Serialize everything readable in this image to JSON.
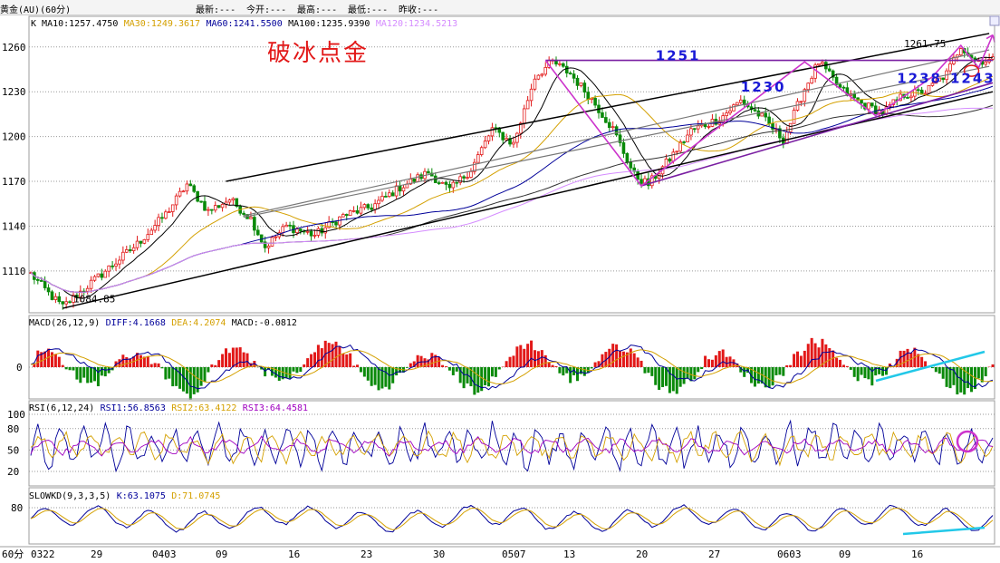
{
  "header": {
    "symbol": "黄金(AU)(60分)",
    "stats": [
      {
        "label": "最新:",
        "value": "---"
      },
      {
        "label": "今开:",
        "value": "---"
      },
      {
        "label": "最高:",
        "value": "---"
      },
      {
        "label": "最低:",
        "value": "---"
      },
      {
        "label": "昨收:",
        "value": "---"
      }
    ]
  },
  "period_label": "60分",
  "chart_data": [
    {
      "type": "line",
      "panel": "price",
      "title": "破冰点金",
      "legend": [
        {
          "text": "K",
          "color": "#000000"
        },
        {
          "text": "MA10:1257.4750",
          "color": "#000000"
        },
        {
          "text": "MA30:1249.3617",
          "color": "#d4a000"
        },
        {
          "text": "MA60:1241.5500",
          "color": "#000099"
        },
        {
          "text": "MA100:1235.9390",
          "color": "#000000"
        },
        {
          "text": "MA120:1234.5213",
          "color": "#d58cff"
        }
      ],
      "ylim": [
        1082,
        1272
      ],
      "yticks": [
        "1260",
        "1230",
        "1200",
        "1170",
        "1140",
        "1110"
      ],
      "ytick_values": [
        1260,
        1230,
        1200,
        1170,
        1140,
        1110
      ],
      "anchors": [
        {
          "t": 0,
          "v": 1108
        },
        {
          "t": 5,
          "v": 1095
        },
        {
          "t": 9,
          "v": 1086
        },
        {
          "t": 14,
          "v": 1096
        },
        {
          "t": 22,
          "v": 1112
        },
        {
          "t": 30,
          "v": 1128
        },
        {
          "t": 38,
          "v": 1148
        },
        {
          "t": 44,
          "v": 1168
        },
        {
          "t": 50,
          "v": 1150
        },
        {
          "t": 56,
          "v": 1158
        },
        {
          "t": 62,
          "v": 1145
        },
        {
          "t": 66,
          "v": 1126
        },
        {
          "t": 72,
          "v": 1140
        },
        {
          "t": 80,
          "v": 1134
        },
        {
          "t": 88,
          "v": 1147
        },
        {
          "t": 96,
          "v": 1153
        },
        {
          "t": 104,
          "v": 1166
        },
        {
          "t": 112,
          "v": 1176
        },
        {
          "t": 118,
          "v": 1164
        },
        {
          "t": 124,
          "v": 1178
        },
        {
          "t": 130,
          "v": 1205
        },
        {
          "t": 136,
          "v": 1195
        },
        {
          "t": 142,
          "v": 1240
        },
        {
          "t": 147,
          "v": 1250
        },
        {
          "t": 152,
          "v": 1242
        },
        {
          "t": 158,
          "v": 1225
        },
        {
          "t": 164,
          "v": 1205
        },
        {
          "t": 170,
          "v": 1174
        },
        {
          "t": 174,
          "v": 1168
        },
        {
          "t": 180,
          "v": 1185
        },
        {
          "t": 186,
          "v": 1204
        },
        {
          "t": 194,
          "v": 1212
        },
        {
          "t": 200,
          "v": 1224
        },
        {
          "t": 206,
          "v": 1213
        },
        {
          "t": 212,
          "v": 1198
        },
        {
          "t": 218,
          "v": 1232
        },
        {
          "t": 222,
          "v": 1250
        },
        {
          "t": 228,
          "v": 1232
        },
        {
          "t": 234,
          "v": 1222
        },
        {
          "t": 240,
          "v": 1216
        },
        {
          "t": 246,
          "v": 1228
        },
        {
          "t": 252,
          "v": 1230
        },
        {
          "t": 258,
          "v": 1242
        },
        {
          "t": 262,
          "v": 1261
        },
        {
          "t": 266,
          "v": 1251
        }
      ],
      "lines": [
        {
          "name": "channel-top",
          "color": "#000000",
          "p1": {
            "t": 55,
            "v": 1170
          },
          "p2": {
            "t": 270,
            "v": 1269
          }
        },
        {
          "name": "channel-bottom",
          "color": "#000000",
          "p1": {
            "t": 9,
            "v": 1085
          },
          "p2": {
            "t": 271,
            "v": 1230
          }
        },
        {
          "name": "mid-line-1",
          "color": "#777777",
          "p1": {
            "t": 60,
            "v": 1147
          },
          "p2": {
            "t": 270,
            "v": 1258
          }
        },
        {
          "name": "mid-line-2",
          "color": "#777777",
          "p1": {
            "t": 60,
            "v": 1146
          },
          "p2": {
            "t": 270,
            "v": 1247
          }
        },
        {
          "name": "resistance-1251",
          "color": "#7a1fa2",
          "p1": {
            "t": 145,
            "v": 1251
          },
          "p2": {
            "t": 271,
            "v": 1251
          }
        },
        {
          "name": "support-rising",
          "color": "#7a1fa2",
          "p1": {
            "t": 172,
            "v": 1167
          },
          "p2": {
            "t": 271,
            "v": 1236
          }
        }
      ],
      "pattern": [
        {
          "t": 145,
          "v": 1251
        },
        {
          "t": 172,
          "v": 1167
        },
        {
          "t": 218,
          "v": 1250
        },
        {
          "t": 238,
          "v": 1214
        },
        {
          "t": 254,
          "v": 1240
        },
        {
          "t": 262,
          "v": 1261
        },
        {
          "t": 267,
          "v": 1246
        },
        {
          "t": 271,
          "v": 1268
        }
      ],
      "annotations": [
        {
          "text": "1251",
          "t": 176,
          "v": 1251,
          "style": "big"
        },
        {
          "text": "1230",
          "t": 200,
          "v": 1230,
          "style": "big"
        },
        {
          "text": "1238",
          "t": 244,
          "v": 1236,
          "style": "big"
        },
        {
          "text": "1243",
          "t": 259,
          "v": 1236,
          "style": "big"
        },
        {
          "text": "1261.75",
          "t": 246,
          "v": 1260,
          "style": "small"
        },
        {
          "text": "1084.85",
          "t": 12,
          "v": 1089,
          "style": "small"
        }
      ]
    },
    {
      "type": "bar",
      "panel": "macd",
      "legend": [
        {
          "text": "MACD(26,12,9)",
          "color": "#000000"
        },
        {
          "text": "DIFF:4.1668",
          "color": "#000099"
        },
        {
          "text": "DEA:4.2074",
          "color": "#d4a000"
        },
        {
          "text": "MACD:-0.0812",
          "color": "#000000"
        }
      ],
      "yticks": [
        "0"
      ],
      "ylim": [
        -12,
        12
      ]
    },
    {
      "type": "line",
      "panel": "rsi",
      "legend": [
        {
          "text": "RSI(6,12,24)",
          "color": "#000000"
        },
        {
          "text": "RSI1:56.8563",
          "color": "#000099"
        },
        {
          "text": "RSI2:63.4122",
          "color": "#d4a000"
        },
        {
          "text": "RSI3:64.4581",
          "color": "#a000c0"
        }
      ],
      "yticks": [
        "100",
        "80",
        "50",
        "20"
      ],
      "ytick_values": [
        100,
        80,
        50,
        20
      ],
      "ylim": [
        0,
        105
      ]
    },
    {
      "type": "line",
      "panel": "slowkd",
      "legend": [
        {
          "text": "SLOWKD(9,3,3,5)",
          "color": "#000000"
        },
        {
          "text": "K:63.1075",
          "color": "#000099"
        },
        {
          "text": "D:71.0745",
          "color": "#d4a000"
        }
      ],
      "yticks": [
        "80"
      ],
      "ytick_values": [
        80
      ],
      "ylim": [
        0,
        100
      ]
    }
  ],
  "x_axis": {
    "labels": [
      "0322",
      "29",
      "0403",
      "09",
      "16",
      "23",
      "30",
      "0507",
      "13",
      "20",
      "27",
      "0603",
      "09",
      "16"
    ],
    "bars_total": 272
  },
  "colors": {
    "up": "#e21818",
    "down": "#0a8a0a",
    "pattern": "#cc33cc",
    "hint": "#22c8e8"
  }
}
